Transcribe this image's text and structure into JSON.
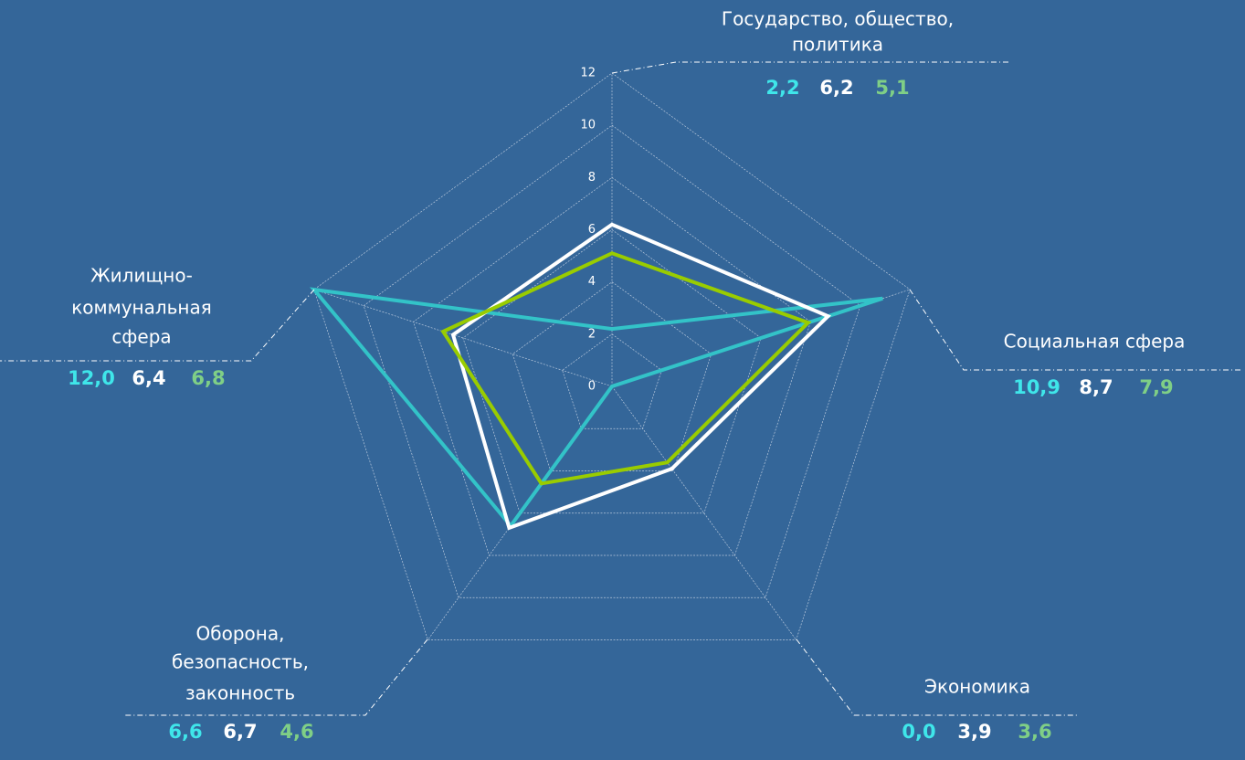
{
  "chart_data": {
    "type": "radar",
    "categories": [
      [
        "Государство, общество,",
        "политика"
      ],
      [
        "Социальная сфера"
      ],
      [
        "Экономика"
      ],
      [
        "Оборона,",
        "безопасность,",
        "законность"
      ],
      [
        "Жилищно-",
        "коммунальная",
        "сфера"
      ]
    ],
    "series": [
      {
        "color": "#33c3c8",
        "label_color": "#3fe6ea",
        "values": [
          2.2,
          10.9,
          0.0,
          6.6,
          12.0
        ],
        "value_labels": [
          "2,2",
          "10,9",
          "0,0",
          "6,6",
          "12,0"
        ]
      },
      {
        "color": "#ffffff",
        "label_color": "#ffffff",
        "values": [
          6.2,
          8.7,
          3.9,
          6.7,
          6.4
        ],
        "value_labels": [
          "6,2",
          "8,7",
          "3,9",
          "6,7",
          "6,4"
        ]
      },
      {
        "color": "#99cc00",
        "label_color": "#7fcf86",
        "values": [
          5.1,
          7.9,
          3.6,
          4.6,
          6.8
        ],
        "value_labels": [
          "5,1",
          "7,9",
          "3,6",
          "4,6",
          "6,8"
        ]
      }
    ],
    "rlim": [
      0,
      12
    ],
    "rticks": [
      0,
      2,
      4,
      6,
      8,
      10,
      12
    ],
    "grid": true
  }
}
